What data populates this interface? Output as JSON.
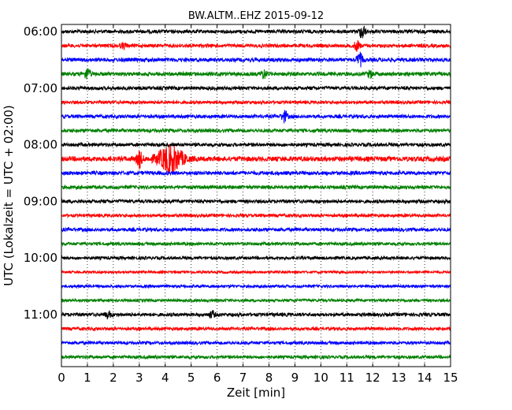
{
  "chart_data": {
    "type": "line",
    "title": "BW.ALTM..EHZ 2015-09-12",
    "xlabel": "Zeit  [min]",
    "ylabel": "UTC (Lokalzeit = UTC + 02:00)",
    "xlim": [
      0,
      15
    ],
    "x_ticks": [
      "0",
      "1",
      "2",
      "3",
      "4",
      "5",
      "6",
      "7",
      "8",
      "9",
      "10",
      "11",
      "12",
      "13",
      "14",
      "15"
    ],
    "y_tick_labels": [
      {
        "label": "06:00",
        "trace": 0
      },
      {
        "label": "07:00",
        "trace": 4
      },
      {
        "label": "08:00",
        "trace": 8
      },
      {
        "label": "09:00",
        "trace": 12
      },
      {
        "label": "10:00",
        "trace": 16
      },
      {
        "label": "11:00",
        "trace": 20
      }
    ],
    "grid": "vertical dotted",
    "trace_interval_min": 15,
    "trace_colors": [
      "#000000",
      "#ff0000",
      "#0000ff",
      "#008000"
    ],
    "traces": [
      {
        "start": "06:00",
        "amplitude": 1.0,
        "events": [
          {
            "x": 11.6,
            "amp": 9
          }
        ]
      },
      {
        "start": "06:15",
        "amplitude": 1.0,
        "events": [
          {
            "x": 2.4,
            "amp": 3
          },
          {
            "x": 11.4,
            "amp": 6
          }
        ]
      },
      {
        "start": "06:30",
        "amplitude": 1.1,
        "events": [
          {
            "x": 11.5,
            "amp": 8
          }
        ]
      },
      {
        "start": "06:45",
        "amplitude": 1.1,
        "events": [
          {
            "x": 1.0,
            "amp": 7
          },
          {
            "x": 7.8,
            "amp": 5
          },
          {
            "x": 11.9,
            "amp": 4
          }
        ]
      },
      {
        "start": "07:00",
        "amplitude": 1.0,
        "events": []
      },
      {
        "start": "07:15",
        "amplitude": 0.9,
        "events": []
      },
      {
        "start": "07:30",
        "amplitude": 1.0,
        "events": [
          {
            "x": 8.6,
            "amp": 7
          }
        ]
      },
      {
        "start": "07:45",
        "amplitude": 1.0,
        "events": []
      },
      {
        "start": "08:00",
        "amplitude": 1.0,
        "events": []
      },
      {
        "start": "08:15",
        "amplitude": 1.4,
        "events": [
          {
            "x": 3.0,
            "amp": 10
          },
          {
            "x": 4.2,
            "amp": 16
          }
        ]
      },
      {
        "start": "08:30",
        "amplitude": 1.1,
        "events": []
      },
      {
        "start": "08:45",
        "amplitude": 1.0,
        "events": []
      },
      {
        "start": "09:00",
        "amplitude": 1.0,
        "events": []
      },
      {
        "start": "09:15",
        "amplitude": 0.9,
        "events": []
      },
      {
        "start": "09:30",
        "amplitude": 1.0,
        "events": []
      },
      {
        "start": "09:45",
        "amplitude": 0.9,
        "events": []
      },
      {
        "start": "10:00",
        "amplitude": 0.9,
        "events": []
      },
      {
        "start": "10:15",
        "amplitude": 0.7,
        "events": []
      },
      {
        "start": "10:30",
        "amplitude": 0.8,
        "events": []
      },
      {
        "start": "10:45",
        "amplitude": 0.8,
        "events": []
      },
      {
        "start": "11:00",
        "amplitude": 1.0,
        "events": [
          {
            "x": 1.8,
            "amp": 4
          },
          {
            "x": 5.8,
            "amp": 4
          }
        ]
      },
      {
        "start": "11:15",
        "amplitude": 0.9,
        "events": []
      },
      {
        "start": "11:30",
        "amplitude": 0.9,
        "events": []
      },
      {
        "start": "11:45",
        "amplitude": 0.9,
        "events": []
      }
    ]
  }
}
